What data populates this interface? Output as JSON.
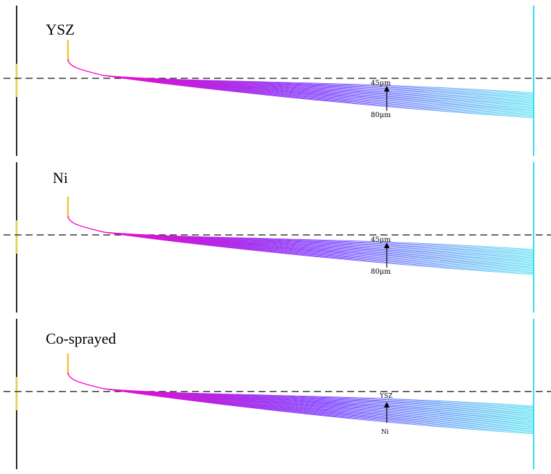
{
  "colors": {
    "left_wall": "#222222",
    "left_wall_mark": "#e8d060",
    "right_wall": "#33d8e8",
    "nozzle": "#f0c040",
    "dashed_axis": "#333333",
    "trajectory_start": "#ff00c0",
    "trajectory_mid": "#8040ff",
    "trajectory_end": "#40e0f0"
  },
  "panels": [
    {
      "title": "YSZ",
      "annotation_top": "45μm",
      "annotation_bottom": "80μm",
      "trajectory_count": 22
    },
    {
      "title": "Ni",
      "annotation_top": "45μm",
      "annotation_bottom": "80μm",
      "trajectory_count": 22
    },
    {
      "title": "Co-sprayed",
      "annotation_top": "YSZ",
      "annotation_bottom": "Ni",
      "trajectory_count": 26
    }
  ]
}
